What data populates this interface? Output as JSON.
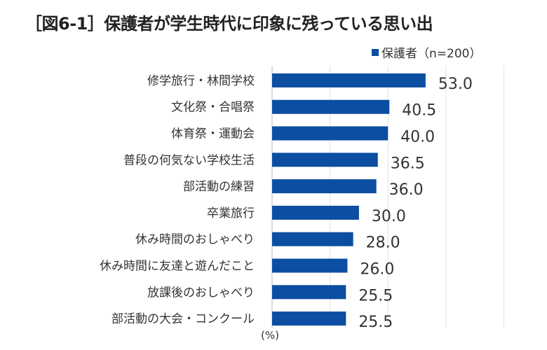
{
  "title": "［図6-1］保護者が学生時代に印象に残っている思い出",
  "chart_data": {
    "type": "bar",
    "orientation": "horizontal",
    "title": "［図6-1］保護者が学生時代に印象に残っている思い出",
    "unit_label": "(%)",
    "categories": [
      "修学旅行・林間学校",
      "文化祭・合唱祭",
      "体育祭・運動会",
      "普段の何気ない学校生活",
      "部活動の練習",
      "卒業旅行",
      "休み時間のおしゃべり",
      "休み時間に友達と遊んだこと",
      "放課後のおしゃべり",
      "部活動の大会・コンクール"
    ],
    "series": [
      {
        "name": "保護者（n=200）",
        "values": [
          53.0,
          40.5,
          40.0,
          36.5,
          36.0,
          30.0,
          28.0,
          26.0,
          25.5,
          25.5
        ],
        "color": "#0b4ea2"
      }
    ],
    "xlim": [
      0,
      80
    ],
    "grid": true,
    "legend": "top-right"
  }
}
